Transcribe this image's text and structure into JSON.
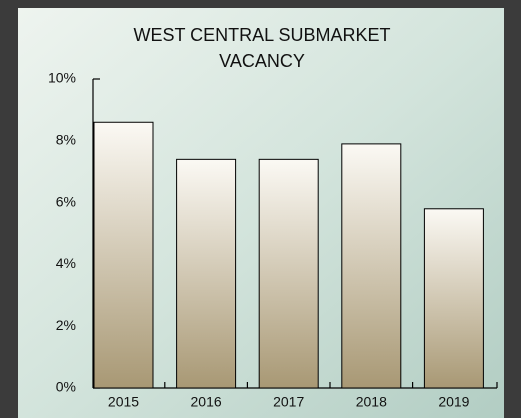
{
  "chart_data": {
    "type": "bar",
    "title": [
      "WEST  CENTRAL SUBMARKET",
      "VACANCY"
    ],
    "categories": [
      "2015",
      "2016",
      "2017",
      "2018",
      "2019"
    ],
    "values": [
      8.6,
      7.4,
      7.4,
      7.9,
      5.8
    ],
    "ylim": [
      0,
      10
    ],
    "yticks": [
      {
        "value": 0,
        "label": "0%"
      },
      {
        "value": 2,
        "label": "2%"
      },
      {
        "value": 4,
        "label": "4%"
      },
      {
        "value": 6,
        "label": "6%"
      },
      {
        "value": 8,
        "label": "8%"
      },
      {
        "value": 10,
        "label": "10%"
      }
    ],
    "grid": false
  }
}
